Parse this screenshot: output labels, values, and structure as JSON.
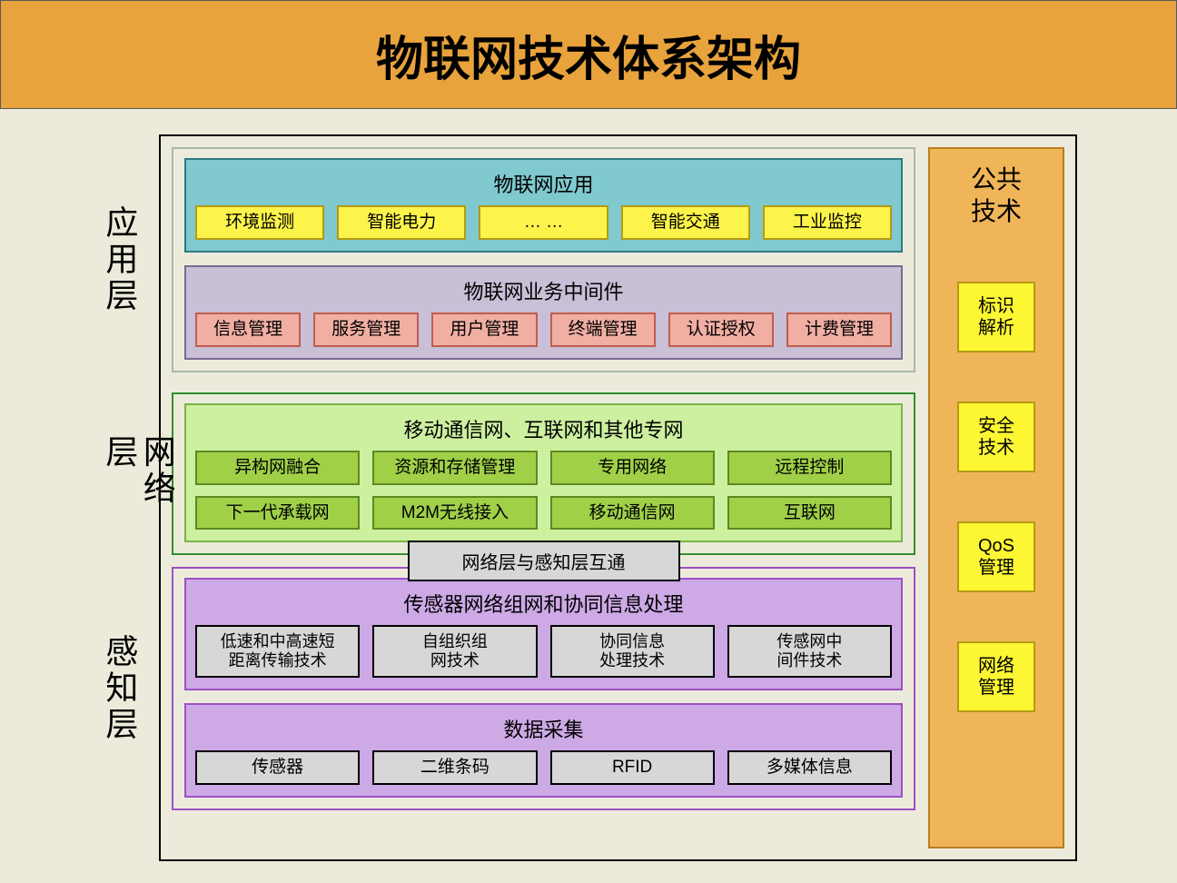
{
  "colors": {
    "page_bg": "#ecebdb",
    "title_bg": "#e8a33d",
    "border_black": "#000000",
    "layer1_border": "#a9b8a5",
    "layer1_sec1_bg": "#7fc9cf",
    "layer1_sec1_border": "#2d7a84",
    "layer1_sec1_chip_bg": "#fcf44a",
    "layer1_sec1_chip_border": "#b59a13",
    "layer1_sec2_bg": "#c9bfd6",
    "layer1_sec2_border": "#7a6a93",
    "layer1_sec2_chip_bg": "#f1aea3",
    "layer1_sec2_chip_border": "#c05d4e",
    "layer2_border": "#2f8f2a",
    "layer2_sec_bg": "#cdefa0",
    "layer2_sec_border": "#7ab648",
    "layer2_chip_bg": "#9fd048",
    "layer2_chip_border": "#5a8a20",
    "bridge_bg": "#d7d7d7",
    "layer3_border": "#9d4fc4",
    "layer3_sec_bg": "#cda9e6",
    "layer3_chip_bg": "#d7d7d7",
    "right_bg": "#f0b558",
    "right_border": "#b97e1f",
    "right_chip_bg": "#fcf633",
    "right_chip_border": "#b59a13"
  },
  "title": "物联网技术体系架构",
  "layers": [
    {
      "label": "应用层",
      "sections": [
        {
          "title": "物联网应用",
          "rows": [
            [
              "环境监测",
              "智能电力",
              "… …",
              "智能交通",
              "工业监控"
            ]
          ]
        },
        {
          "title": "物联网业务中间件",
          "rows": [
            [
              "信息管理",
              "服务管理",
              "用户管理",
              "终端管理",
              "认证授权",
              "计费管理"
            ]
          ]
        }
      ]
    },
    {
      "label": "网络层",
      "sections": [
        {
          "title": "移动通信网、互联网和其他专网",
          "rows": [
            [
              "异构网融合",
              "资源和存储管理",
              "专用网络",
              "远程控制"
            ],
            [
              "下一代承载网",
              "M2M无线接入",
              "移动通信网",
              "互联网"
            ]
          ]
        }
      ]
    },
    {
      "label": "感知层",
      "sections": [
        {
          "title": "传感器网络组网和协同信息处理",
          "rows": [
            [
              "低速和中高速短距离传输技术",
              "自组织组网技术",
              "协同信息处理技术",
              "传感网中间件技术"
            ]
          ]
        },
        {
          "title": "数据采集",
          "rows": [
            [
              "传感器",
              "二维条码",
              "RFID",
              "多媒体信息"
            ]
          ]
        }
      ]
    }
  ],
  "bridge": "网络层与感知层互通",
  "right": {
    "title": "公共技术",
    "items": [
      "标识解析",
      "安全技术",
      "QoS管理",
      "网络管理"
    ]
  }
}
